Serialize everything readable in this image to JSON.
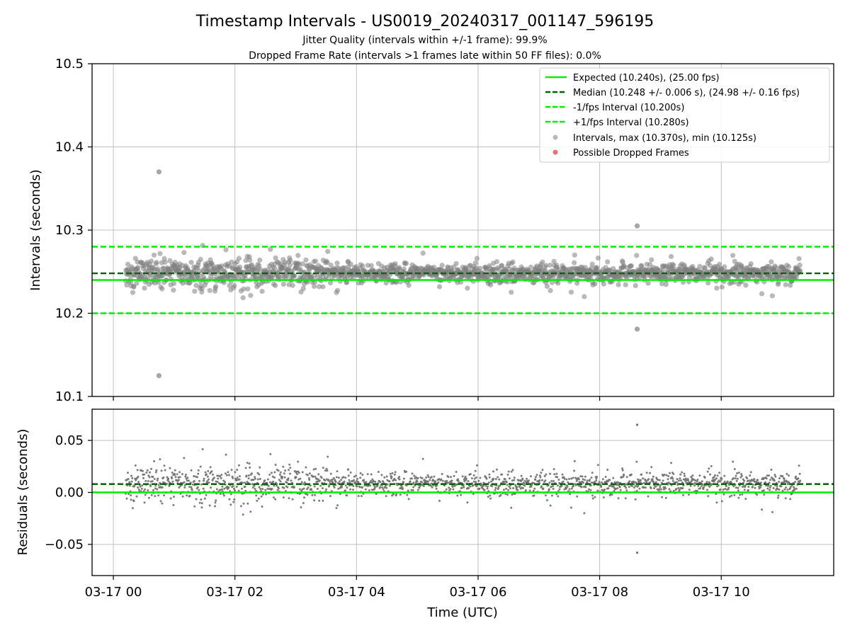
{
  "figure": {
    "title": "Timestamp Intervals - US0019_20240317_001147_596195",
    "subtitle1": "Jitter Quality (intervals within +/-1 frame): 99.9%",
    "subtitle2": "Dropped Frame Rate (intervals >1 frames late within 50 FF files): 0.0%"
  },
  "chart_data": [
    {
      "type": "scatter",
      "panel": "top",
      "ylabel": "Intervals (seconds)",
      "ylim": [
        10.1,
        10.5
      ],
      "yticks": [
        "10.1",
        "10.2",
        "10.3",
        "10.4",
        "10.5"
      ],
      "xrange_hours": [
        -0.35,
        11.85
      ],
      "grid": true,
      "legend_position": "top-right",
      "lines": [
        {
          "name": "Expected (10.240s), (25.00 fps)",
          "y": 10.24,
          "color": "#00ee00",
          "style": "solid"
        },
        {
          "name": "Median (10.248 +/- 0.006 s), (24.98 +/- 0.16 fps)",
          "y": 10.248,
          "color": "#006400",
          "style": "dashed"
        },
        {
          "name": "-1/fps Interval (10.200s)",
          "y": 10.2,
          "color": "#00ee00",
          "style": "dashed"
        },
        {
          "name": "+1/fps Interval (10.280s)",
          "y": 10.28,
          "color": "#00ee00",
          "style": "dashed"
        }
      ],
      "series": [
        {
          "name": "Intervals, max (10.370s), min (10.125s)",
          "color": "#808080",
          "x_range": [
            "03-17 00:12",
            "03-17 11:18"
          ],
          "center": 10.248,
          "outliers": [
            {
              "x": "03-17 00:45",
              "y": 10.37
            },
            {
              "x": "03-17 00:45",
              "y": 10.125
            },
            {
              "x": "03-17 08:37",
              "y": 10.305
            },
            {
              "x": "03-17 08:37",
              "y": 10.181
            }
          ]
        },
        {
          "name": "Possible Dropped Frames",
          "color": "#e8595a",
          "points": []
        }
      ]
    },
    {
      "type": "scatter",
      "panel": "bottom",
      "ylabel": "Residuals (seconds)",
      "xlabel": "Time (UTC)",
      "ylim": [
        -0.08,
        0.08
      ],
      "yticks": [
        "−0.05",
        "0.00",
        "0.05"
      ],
      "xticks": [
        "03-17 00",
        "03-17 02",
        "03-17 04",
        "03-17 06",
        "03-17 08",
        "03-17 10"
      ],
      "grid": true,
      "lines": [
        {
          "y": 0.0,
          "color": "#00ee00",
          "style": "solid"
        },
        {
          "y": 0.008,
          "color": "#006400",
          "style": "dashed"
        }
      ],
      "series": [
        {
          "color": "#707070",
          "x_range": [
            "03-17 00:12",
            "03-17 11:18"
          ],
          "center": 0.008,
          "outliers": [
            {
              "x": "03-17 08:37",
              "y": 0.065
            },
            {
              "x": "03-17 08:37",
              "y": -0.058
            }
          ]
        }
      ]
    }
  ]
}
